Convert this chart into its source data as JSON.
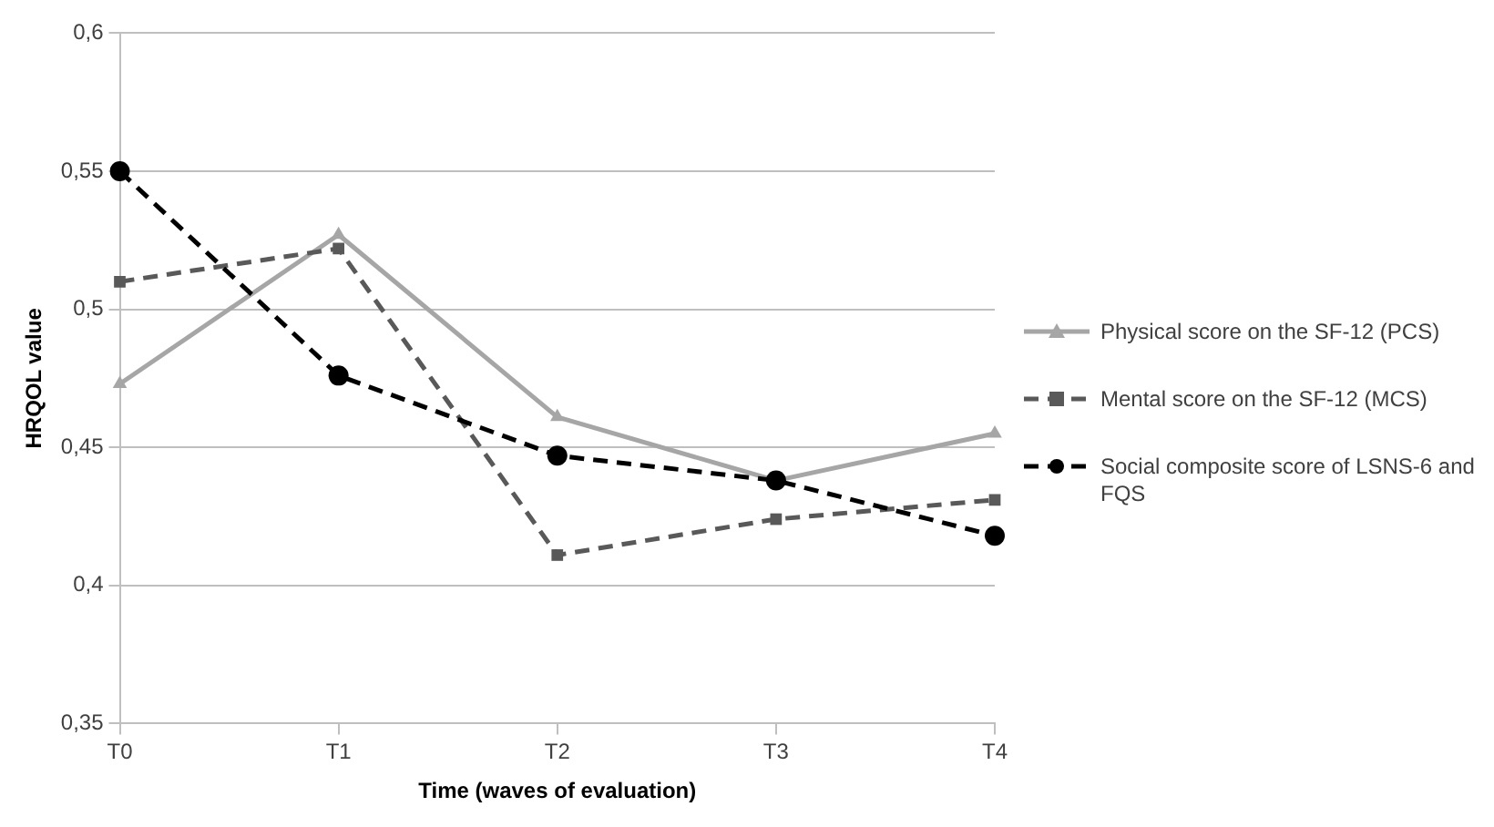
{
  "chart_data": {
    "type": "line",
    "xlabel": "Time (waves of evaluation)",
    "ylabel": "HRQOL value",
    "categories": [
      "T0",
      "T1",
      "T2",
      "T3",
      "T4"
    ],
    "series": [
      {
        "name": "Physical score on the SF-12 (PCS)",
        "color": "#a6a6a6",
        "marker": "triangle",
        "line_style": "solid",
        "values": [
          0.473,
          0.527,
          0.461,
          0.438,
          0.455
        ]
      },
      {
        "name": "Mental score on the SF-12 (MCS)",
        "color": "#595959",
        "marker": "square",
        "line_style": "dashed",
        "values": [
          0.51,
          0.522,
          0.411,
          0.424,
          0.431
        ]
      },
      {
        "name": "Social composite score of LSNS-6 and FQS",
        "color": "#000000",
        "marker": "circle",
        "line_style": "dashed",
        "values": [
          0.55,
          0.476,
          0.447,
          0.438,
          0.418
        ]
      }
    ],
    "ylim": [
      0.35,
      0.6
    ],
    "yticks": [
      {
        "value": 0.35,
        "label": "0,35"
      },
      {
        "value": 0.4,
        "label": "0,4"
      },
      {
        "value": 0.45,
        "label": "0,45"
      },
      {
        "value": 0.5,
        "label": "0,5"
      },
      {
        "value": 0.55,
        "label": "0,55"
      },
      {
        "value": 0.6,
        "label": "0,6"
      }
    ],
    "grid": "y",
    "legend": "right"
  }
}
